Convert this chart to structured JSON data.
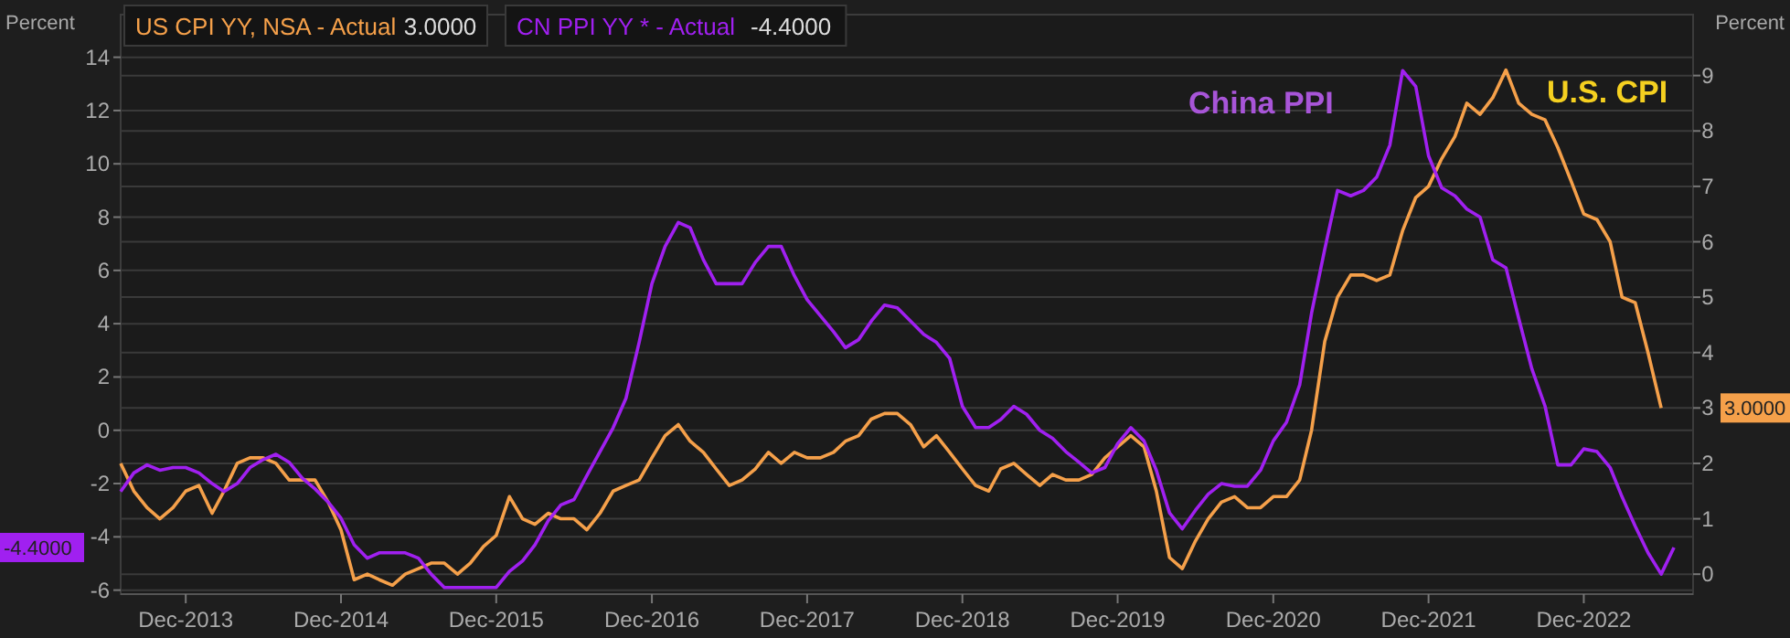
{
  "chart_data": {
    "type": "line",
    "ylabel": "Percent",
    "y2label": "Percent",
    "x": [
      "2013-07",
      "2013-08",
      "2013-09",
      "2013-10",
      "2013-11",
      "2013-12",
      "2014-01",
      "2014-02",
      "2014-03",
      "2014-04",
      "2014-05",
      "2014-06",
      "2014-07",
      "2014-08",
      "2014-09",
      "2014-10",
      "2014-11",
      "2014-12",
      "2015-01",
      "2015-02",
      "2015-03",
      "2015-04",
      "2015-05",
      "2015-06",
      "2015-07",
      "2015-08",
      "2015-09",
      "2015-10",
      "2015-11",
      "2015-12",
      "2016-01",
      "2016-02",
      "2016-03",
      "2016-04",
      "2016-05",
      "2016-06",
      "2016-07",
      "2016-08",
      "2016-09",
      "2016-10",
      "2016-11",
      "2016-12",
      "2017-01",
      "2017-02",
      "2017-03",
      "2017-04",
      "2017-05",
      "2017-06",
      "2017-07",
      "2017-08",
      "2017-09",
      "2017-10",
      "2017-11",
      "2017-12",
      "2018-01",
      "2018-02",
      "2018-03",
      "2018-04",
      "2018-05",
      "2018-06",
      "2018-07",
      "2018-08",
      "2018-09",
      "2018-10",
      "2018-11",
      "2018-12",
      "2019-01",
      "2019-02",
      "2019-03",
      "2019-04",
      "2019-05",
      "2019-06",
      "2019-07",
      "2019-08",
      "2019-09",
      "2019-10",
      "2019-11",
      "2019-12",
      "2020-01",
      "2020-02",
      "2020-03",
      "2020-04",
      "2020-05",
      "2020-06",
      "2020-07",
      "2020-08",
      "2020-09",
      "2020-10",
      "2020-11",
      "2020-12",
      "2021-01",
      "2021-02",
      "2021-03",
      "2021-04",
      "2021-05",
      "2021-06",
      "2021-07",
      "2021-08",
      "2021-09",
      "2021-10",
      "2021-11",
      "2021-12",
      "2022-01",
      "2022-02",
      "2022-03",
      "2022-04",
      "2022-05",
      "2022-06",
      "2022-07",
      "2022-08",
      "2022-09",
      "2022-10",
      "2022-11",
      "2022-12",
      "2023-01",
      "2023-02",
      "2023-03",
      "2023-04",
      "2023-05",
      "2023-06",
      "2023-07"
    ],
    "series": [
      {
        "name": "US CPI YY, NSA - Actual",
        "color": "#f5a04a",
        "axis": "y2",
        "values": [
          2.0,
          1.5,
          1.2,
          1.0,
          1.2,
          1.5,
          1.6,
          1.1,
          1.5,
          2.0,
          2.1,
          2.1,
          2.0,
          1.7,
          1.7,
          1.7,
          1.3,
          0.8,
          -0.1,
          0.0,
          -0.1,
          -0.2,
          0.0,
          0.1,
          0.2,
          0.2,
          0.0,
          0.2,
          0.5,
          0.7,
          1.4,
          1.0,
          0.9,
          1.1,
          1.0,
          1.0,
          0.8,
          1.1,
          1.5,
          1.6,
          1.7,
          2.1,
          2.5,
          2.7,
          2.4,
          2.2,
          1.9,
          1.6,
          1.7,
          1.9,
          2.2,
          2.0,
          2.2,
          2.1,
          2.1,
          2.2,
          2.4,
          2.5,
          2.8,
          2.9,
          2.9,
          2.7,
          2.3,
          2.5,
          2.2,
          1.9,
          1.6,
          1.5,
          1.9,
          2.0,
          1.8,
          1.6,
          1.8,
          1.7,
          1.7,
          1.8,
          2.1,
          2.3,
          2.5,
          2.3,
          1.5,
          0.3,
          0.1,
          0.6,
          1.0,
          1.3,
          1.4,
          1.2,
          1.2,
          1.4,
          1.4,
          1.7,
          2.6,
          4.2,
          5.0,
          5.4,
          5.4,
          5.3,
          5.4,
          6.2,
          6.8,
          7.0,
          7.5,
          7.9,
          8.5,
          8.3,
          8.6,
          9.1,
          8.5,
          8.3,
          8.2,
          7.7,
          7.1,
          6.5,
          6.4,
          6.0,
          5.0,
          4.9,
          4.0,
          3.0,
          null
        ]
      },
      {
        "name": "CN PPI YY * - Actual",
        "color": "#a020f0",
        "values": [
          -2.3,
          -1.6,
          -1.3,
          -1.5,
          -1.4,
          -1.4,
          -1.6,
          -2.0,
          -2.3,
          -2.0,
          -1.4,
          -1.1,
          -0.9,
          -1.2,
          -1.8,
          -2.2,
          -2.7,
          -3.3,
          -4.3,
          -4.8,
          -4.6,
          -4.6,
          -4.6,
          -4.8,
          -5.4,
          -5.9,
          -5.9,
          -5.9,
          -5.9,
          -5.9,
          -5.3,
          -4.9,
          -4.3,
          -3.4,
          -2.8,
          -2.6,
          -1.7,
          -0.8,
          0.1,
          1.2,
          3.3,
          5.5,
          6.9,
          7.8,
          7.6,
          6.4,
          5.5,
          5.5,
          5.5,
          6.3,
          6.9,
          6.9,
          5.8,
          4.9,
          4.3,
          3.7,
          3.1,
          3.4,
          4.1,
          4.7,
          4.6,
          4.1,
          3.6,
          3.3,
          2.7,
          0.9,
          0.1,
          0.1,
          0.4,
          0.9,
          0.6,
          0.0,
          -0.3,
          -0.8,
          -1.2,
          -1.6,
          -1.4,
          -0.5,
          0.1,
          -0.4,
          -1.5,
          -3.1,
          -3.7,
          -3.0,
          -2.4,
          -2.0,
          -2.1,
          -2.1,
          -1.5,
          -0.4,
          0.3,
          1.7,
          4.4,
          6.8,
          9.0,
          8.8,
          9.0,
          9.5,
          10.7,
          13.5,
          12.9,
          10.3,
          9.1,
          8.8,
          8.3,
          8.0,
          6.4,
          6.1,
          4.2,
          2.3,
          0.9,
          -1.3,
          -1.3,
          -0.7,
          -0.8,
          -1.4,
          -2.5,
          -3.6,
          -4.6,
          -5.4,
          -4.4
        ]
      }
    ],
    "xlim": [
      "2013-07",
      "2023-08-15"
    ],
    "xticks": [
      {
        "value": "2013-12",
        "label": "Dec-2013"
      },
      {
        "value": "2014-12",
        "label": "Dec-2014"
      },
      {
        "value": "2015-12",
        "label": "Dec-2015"
      },
      {
        "value": "2016-12",
        "label": "Dec-2016"
      },
      {
        "value": "2017-12",
        "label": "Dec-2017"
      },
      {
        "value": "2018-12",
        "label": "Dec-2018"
      },
      {
        "value": "2019-12",
        "label": "Dec-2019"
      },
      {
        "value": "2020-12",
        "label": "Dec-2020"
      },
      {
        "value": "2021-12",
        "label": "Dec-2021"
      },
      {
        "value": "2022-12",
        "label": "Dec-2022"
      }
    ],
    "ylim": [
      -6.15,
      15.6
    ],
    "yticks": [
      -6,
      -4,
      -2,
      0,
      2,
      4,
      6,
      8,
      10,
      12,
      14
    ],
    "y2lim": [
      -0.36,
      10.1
    ],
    "y2ticks": [
      0,
      1,
      2,
      3,
      4,
      5,
      6,
      7,
      8,
      9
    ],
    "annotations": [
      "China PPI",
      "U.S. CPI",
      "3.0000",
      "-4.4000"
    ],
    "grid": "y",
    "legend": "top left",
    "line_style": "solid",
    "marker": "none"
  }
}
